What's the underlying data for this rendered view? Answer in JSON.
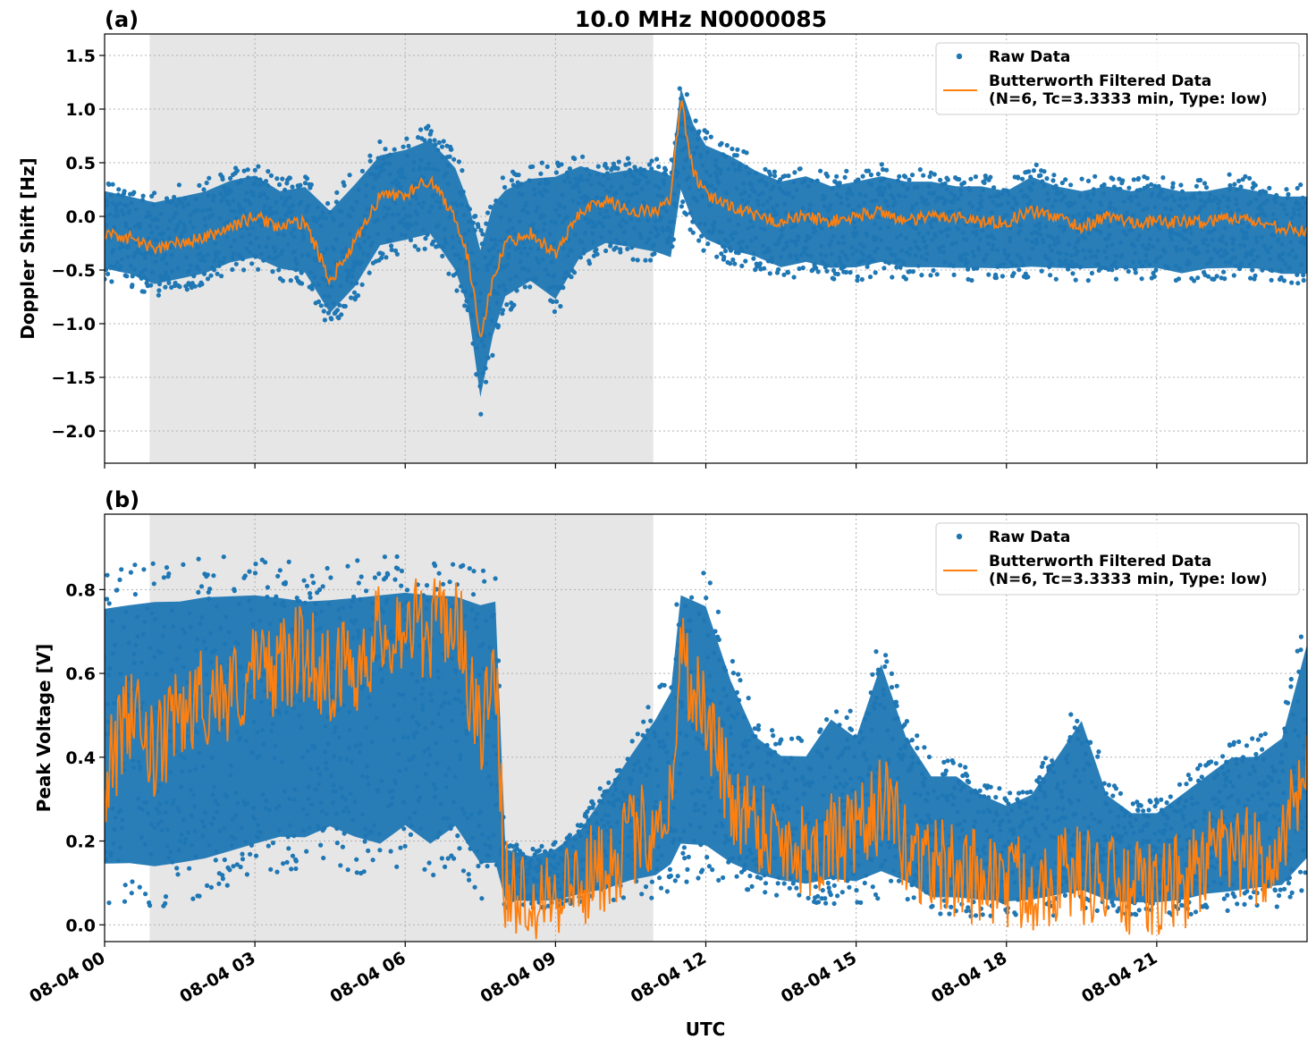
{
  "figure": {
    "title": "10.0 MHz N0000085",
    "xlabel": "UTC"
  },
  "colors": {
    "raw": "#1f77b4",
    "filtered": "#ff7f0e",
    "shade": "#e6e6e6"
  },
  "chart_data": [
    {
      "type": "scatter",
      "panel_label": "(a)",
      "ylabel": "Doppler Shift [Hz]",
      "xlim": [
        0,
        24
      ],
      "ylim": [
        -2.3,
        1.7
      ],
      "yticks": [
        1.5,
        1.0,
        0.5,
        0.0,
        -0.5,
        -1.0,
        -1.5,
        -2.0
      ],
      "ytick_labels": [
        "1.5",
        "1.0",
        "0.5",
        "0.0",
        "−0.5",
        "−1.0",
        "−1.5",
        "−2.0"
      ],
      "xticks": [
        0,
        3,
        6,
        9,
        12,
        15,
        18,
        21
      ],
      "xtick_labels": [
        "08-04 00",
        "08-04 03",
        "08-04 06",
        "08-04 09",
        "08-04 12",
        "08-04 15",
        "08-04 18",
        "08-04 21"
      ],
      "grid": true,
      "legend_position": "top-right",
      "shaded_interval_hours": [
        0.9,
        10.95
      ],
      "legend": [
        {
          "kind": "marker",
          "label": "Raw Data"
        },
        {
          "kind": "line",
          "label": "Butterworth Filtered Data",
          "label2": "(N=6, Tc=3.3333 min, Type: low)"
        }
      ],
      "series": [
        {
          "name": "Raw Data",
          "kind": "scatter-band",
          "x": [
            0,
            0.5,
            1,
            1.5,
            2,
            2.5,
            3,
            3.5,
            4,
            4.5,
            5,
            5.5,
            6,
            6.5,
            7,
            7.25,
            7.5,
            7.75,
            8,
            8.5,
            9,
            9.5,
            10,
            10.5,
            11,
            11.3,
            11.5,
            11.75,
            12,
            12.5,
            13,
            13.5,
            14,
            14.5,
            15,
            15.5,
            16,
            16.5,
            17,
            17.5,
            18,
            18.5,
            19,
            19.5,
            20,
            20.5,
            21,
            21.5,
            22,
            22.5,
            23,
            23.5,
            24
          ],
          "upper": [
            0.35,
            0.3,
            0.25,
            0.3,
            0.35,
            0.45,
            0.5,
            0.35,
            0.4,
            0.2,
            0.45,
            0.7,
            0.75,
            0.85,
            0.6,
            0.3,
            -0.1,
            0.3,
            0.4,
            0.5,
            0.55,
            0.6,
            0.5,
            0.55,
            0.55,
            0.5,
            1.35,
            1.0,
            0.8,
            0.7,
            0.55,
            0.45,
            0.5,
            0.4,
            0.45,
            0.5,
            0.45,
            0.45,
            0.4,
            0.4,
            0.35,
            0.5,
            0.4,
            0.35,
            0.4,
            0.35,
            0.4,
            0.35,
            0.35,
            0.4,
            0.35,
            0.3,
            0.3
          ],
          "lower": [
            -0.6,
            -0.65,
            -0.75,
            -0.7,
            -0.65,
            -0.55,
            -0.5,
            -0.6,
            -0.65,
            -1.05,
            -0.8,
            -0.4,
            -0.35,
            -0.3,
            -0.65,
            -1.0,
            -1.9,
            -1.3,
            -0.9,
            -0.75,
            -0.95,
            -0.5,
            -0.35,
            -0.4,
            -0.45,
            -0.5,
            0.1,
            -0.2,
            -0.35,
            -0.45,
            -0.5,
            -0.6,
            -0.55,
            -0.6,
            -0.6,
            -0.55,
            -0.6,
            -0.6,
            -0.6,
            -0.6,
            -0.6,
            -0.6,
            -0.6,
            -0.6,
            -0.6,
            -0.6,
            -0.6,
            -0.65,
            -0.6,
            -0.6,
            -0.6,
            -0.65,
            -0.65
          ]
        },
        {
          "name": "Butterworth Filtered Data",
          "kind": "line",
          "x": [
            0,
            0.5,
            1,
            1.5,
            2,
            2.5,
            3,
            3.5,
            4,
            4.5,
            5,
            5.5,
            6,
            6.5,
            7,
            7.25,
            7.5,
            7.75,
            8,
            8.5,
            9,
            9.5,
            10,
            10.5,
            11,
            11.3,
            11.5,
            11.75,
            12,
            12.5,
            13,
            13.5,
            14,
            14.5,
            15,
            15.5,
            16,
            16.5,
            17,
            17.5,
            18,
            18.5,
            19,
            19.5,
            20,
            20.5,
            21,
            21.5,
            22,
            22.5,
            23,
            23.5,
            24
          ],
          "y": [
            -0.15,
            -0.2,
            -0.3,
            -0.25,
            -0.2,
            -0.1,
            0.0,
            -0.1,
            -0.05,
            -0.6,
            -0.25,
            0.2,
            0.2,
            0.35,
            0.0,
            -0.4,
            -1.1,
            -0.6,
            -0.25,
            -0.15,
            -0.35,
            0.05,
            0.15,
            0.05,
            0.05,
            0.15,
            1.1,
            0.4,
            0.2,
            0.1,
            0.0,
            -0.05,
            0.0,
            -0.05,
            0.0,
            0.05,
            -0.05,
            0.0,
            0.0,
            -0.05,
            -0.05,
            0.05,
            0.0,
            -0.1,
            0.0,
            -0.05,
            -0.05,
            -0.05,
            -0.05,
            0.0,
            -0.05,
            -0.1,
            -0.15
          ]
        }
      ]
    },
    {
      "type": "scatter",
      "panel_label": "(b)",
      "ylabel": "Peak Voltage [V]",
      "xlim": [
        0,
        24
      ],
      "ylim": [
        -0.04,
        0.98
      ],
      "yticks": [
        0.8,
        0.6,
        0.4,
        0.2,
        0.0
      ],
      "ytick_labels": [
        "0.8",
        "0.6",
        "0.4",
        "0.2",
        "0.0"
      ],
      "xticks": [
        0,
        3,
        6,
        9,
        12,
        15,
        18,
        21
      ],
      "xtick_labels": [
        "08-04 00",
        "08-04 03",
        "08-04 06",
        "08-04 09",
        "08-04 12",
        "08-04 15",
        "08-04 18",
        "08-04 21"
      ],
      "grid": true,
      "legend_position": "top-right",
      "shaded_interval_hours": [
        0.9,
        10.95
      ],
      "legend": [
        {
          "kind": "marker",
          "label": "Raw Data"
        },
        {
          "kind": "line",
          "label": "Butterworth Filtered Data",
          "label2": "(N=6, Tc=3.3333 min, Type: low)"
        }
      ],
      "series": [
        {
          "name": "Raw Data",
          "kind": "scatter-band",
          "x": [
            0,
            0.5,
            1,
            1.5,
            2,
            2.5,
            3,
            3.5,
            4,
            4.5,
            5,
            5.5,
            6,
            6.5,
            7,
            7.5,
            7.8,
            8,
            8.5,
            9,
            9.5,
            10,
            10.5,
            11,
            11.3,
            11.5,
            12,
            12.5,
            13,
            13.5,
            14,
            14.5,
            15,
            15.5,
            16,
            16.5,
            17,
            17.5,
            18,
            18.5,
            19,
            19.5,
            20,
            20.5,
            21,
            21.5,
            22,
            22.5,
            23,
            23.5,
            24
          ],
          "upper": [
            0.85,
            0.86,
            0.87,
            0.87,
            0.88,
            0.88,
            0.88,
            0.87,
            0.86,
            0.86,
            0.87,
            0.88,
            0.88,
            0.88,
            0.87,
            0.86,
            0.87,
            0.2,
            0.18,
            0.2,
            0.25,
            0.35,
            0.45,
            0.55,
            0.62,
            0.88,
            0.85,
            0.65,
            0.5,
            0.45,
            0.45,
            0.55,
            0.5,
            0.7,
            0.5,
            0.4,
            0.4,
            0.35,
            0.32,
            0.35,
            0.45,
            0.55,
            0.35,
            0.3,
            0.3,
            0.35,
            0.4,
            0.45,
            0.45,
            0.5,
            0.75
          ],
          "lower": [
            0.05,
            0.05,
            0.04,
            0.05,
            0.06,
            0.08,
            0.1,
            0.12,
            0.12,
            0.15,
            0.12,
            0.1,
            0.15,
            0.1,
            0.15,
            0.05,
            0.05,
            0.04,
            0.04,
            0.04,
            0.05,
            0.05,
            0.06,
            0.06,
            0.08,
            0.1,
            0.1,
            0.08,
            0.07,
            0.06,
            0.05,
            0.05,
            0.05,
            0.05,
            0.05,
            0.02,
            0.02,
            0.02,
            0.02,
            0.02,
            0.02,
            0.02,
            0.02,
            0.02,
            0.02,
            0.02,
            0.03,
            0.03,
            0.04,
            0.04,
            0.08
          ]
        },
        {
          "name": "Butterworth Filtered Data",
          "kind": "line",
          "x": [
            0,
            0.5,
            1,
            1.5,
            2,
            2.5,
            3,
            3.5,
            4,
            4.5,
            5,
            5.5,
            6,
            6.5,
            7,
            7.5,
            7.8,
            8,
            8.5,
            9,
            9.5,
            10,
            10.5,
            11,
            11.3,
            11.5,
            12,
            12.5,
            13,
            13.5,
            14,
            14.5,
            15,
            15.5,
            16,
            16.5,
            17,
            17.5,
            18,
            18.5,
            19,
            19.5,
            20,
            20.5,
            21,
            21.5,
            22,
            22.5,
            23,
            23.5,
            24
          ],
          "y": [
            0.35,
            0.5,
            0.4,
            0.5,
            0.55,
            0.55,
            0.6,
            0.62,
            0.65,
            0.6,
            0.62,
            0.7,
            0.72,
            0.7,
            0.75,
            0.45,
            0.6,
            0.08,
            0.08,
            0.09,
            0.1,
            0.15,
            0.2,
            0.25,
            0.3,
            0.65,
            0.5,
            0.3,
            0.25,
            0.2,
            0.18,
            0.2,
            0.2,
            0.3,
            0.18,
            0.15,
            0.12,
            0.12,
            0.1,
            0.1,
            0.12,
            0.12,
            0.1,
            0.08,
            0.08,
            0.1,
            0.15,
            0.18,
            0.15,
            0.2,
            0.35
          ]
        }
      ]
    }
  ]
}
